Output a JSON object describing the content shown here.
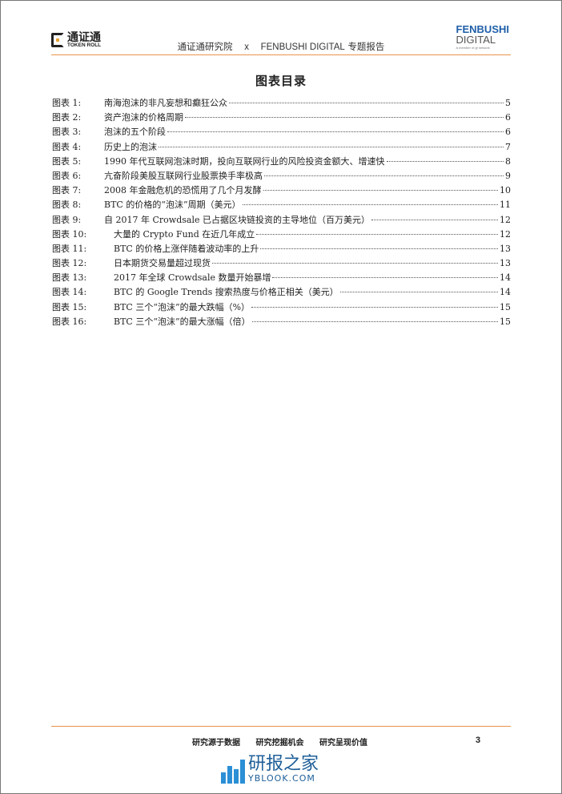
{
  "header": {
    "left_logo": {
      "cn": "通证通",
      "en": "TOKEN ROLL"
    },
    "title_cn1": "通证通研究院",
    "title_x": "x",
    "title_en": "FENBUSHI DIGITAL",
    "title_cn2": "专题报告",
    "right_logo": {
      "line1": "FENBUSHI",
      "line2": "DIGITAL",
      "line3": "A member of gf network"
    },
    "accent_color": "#e8934a"
  },
  "toc": {
    "title": "图表目录",
    "items": [
      {
        "label": "图表 1:",
        "title": "南海泡沫的非凡妄想和癫狂公众",
        "page": "5"
      },
      {
        "label": "图表 2:",
        "title": "资产泡沫的价格周期",
        "page": "6"
      },
      {
        "label": "图表 3:",
        "title": "泡沫的五个阶段",
        "page": "6"
      },
      {
        "label": "图表 4:",
        "title": "历史上的泡沫",
        "page": "7"
      },
      {
        "label": "图表 5:",
        "title": "1990 年代互联网泡沫时期，投向互联网行业的风险投资金额大、增速快",
        "page": "8"
      },
      {
        "label": "图表 6:",
        "title": "亢奋阶段美股互联网行业股票换手率极高",
        "page": "9"
      },
      {
        "label": "图表 7:",
        "title": "2008 年金融危机的恐慌用了几个月发酵",
        "page": "10"
      },
      {
        "label": "图表 8:",
        "title": "BTC 的价格的“泡沫”周期（美元）",
        "page": "11"
      },
      {
        "label": "图表 9:",
        "title": "自 2017 年 Crowdsale 已占据区块链投资的主导地位（百万美元）",
        "page": "12"
      },
      {
        "label": "图表 10:",
        "title": "大量的 Crypto Fund 在近几年成立",
        "page": "12"
      },
      {
        "label": "图表 11:",
        "title": "BTC 的价格上涨伴随着波动率的上升",
        "page": "13"
      },
      {
        "label": "图表 12:",
        "title": "日本期货交易量超过现货",
        "page": "13"
      },
      {
        "label": "图表 13:",
        "title": "2017 年全球 Crowdsale 数量开始暴增",
        "page": "14"
      },
      {
        "label": "图表 14:",
        "title": "BTC 的 Google Trends 搜索热度与价格正相关（美元）",
        "page": "14"
      },
      {
        "label": "图表 15:",
        "title": "BTC 三个“泡沫”的最大跌幅（%）",
        "page": "15"
      },
      {
        "label": "图表 16:",
        "title": "BTC 三个“泡沫”的最大涨幅（倍）",
        "page": "15"
      }
    ]
  },
  "footer": {
    "slogans": [
      "研究源于数据",
      "研究挖掘机会",
      "研究呈现价值"
    ],
    "page_number": "3",
    "watermark": {
      "cn": "研报之家",
      "en": "YBLOOK.COM"
    }
  }
}
